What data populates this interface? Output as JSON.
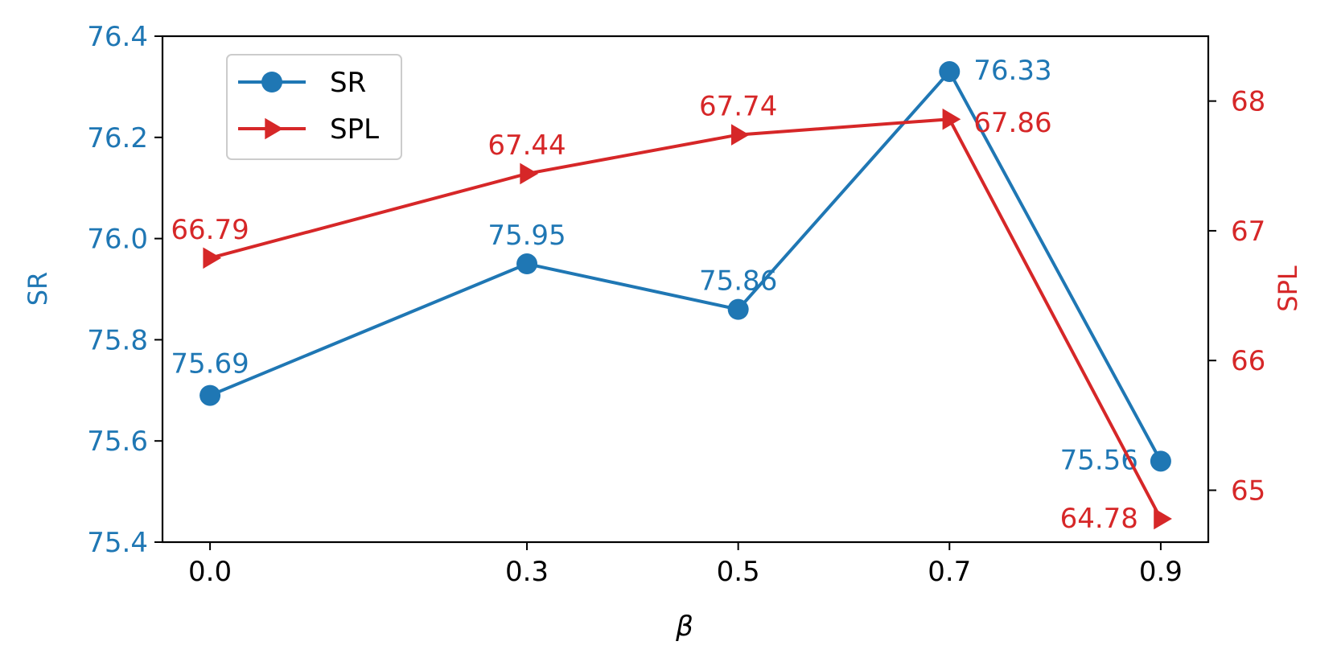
{
  "chart_data": {
    "type": "line",
    "xlabel": "β",
    "ylabel_left": "SR",
    "ylabel_right": "SPL",
    "x_ticks": [
      "0.0",
      "0.3",
      "0.5",
      "0.7",
      "0.9"
    ],
    "x": [
      0.0,
      0.3,
      0.5,
      0.7,
      0.9
    ],
    "xlim": [
      -0.045,
      0.945
    ],
    "ylim_left": [
      75.4,
      76.4
    ],
    "yticks_left": [
      "75.4",
      "75.6",
      "75.8",
      "76.0",
      "76.2",
      "76.4"
    ],
    "ylim_right": [
      64.6,
      68.5
    ],
    "yticks_right": [
      "65",
      "66",
      "67",
      "68"
    ],
    "legend_position": "top-left",
    "grid": false,
    "series": [
      {
        "name": "SR",
        "axis": "left",
        "color": "#1f77b4",
        "marker": "circle",
        "values": [
          75.69,
          75.95,
          75.86,
          76.33,
          75.56
        ],
        "labels": [
          "75.69",
          "75.95",
          "75.86",
          "76.33",
          "75.56"
        ]
      },
      {
        "name": "SPL",
        "axis": "right",
        "color": "#d62728",
        "marker": "triangle-right",
        "values": [
          66.79,
          67.44,
          67.74,
          67.86,
          64.78
        ],
        "labels": [
          "66.79",
          "67.44",
          "67.74",
          "67.86",
          "64.78"
        ]
      }
    ]
  }
}
